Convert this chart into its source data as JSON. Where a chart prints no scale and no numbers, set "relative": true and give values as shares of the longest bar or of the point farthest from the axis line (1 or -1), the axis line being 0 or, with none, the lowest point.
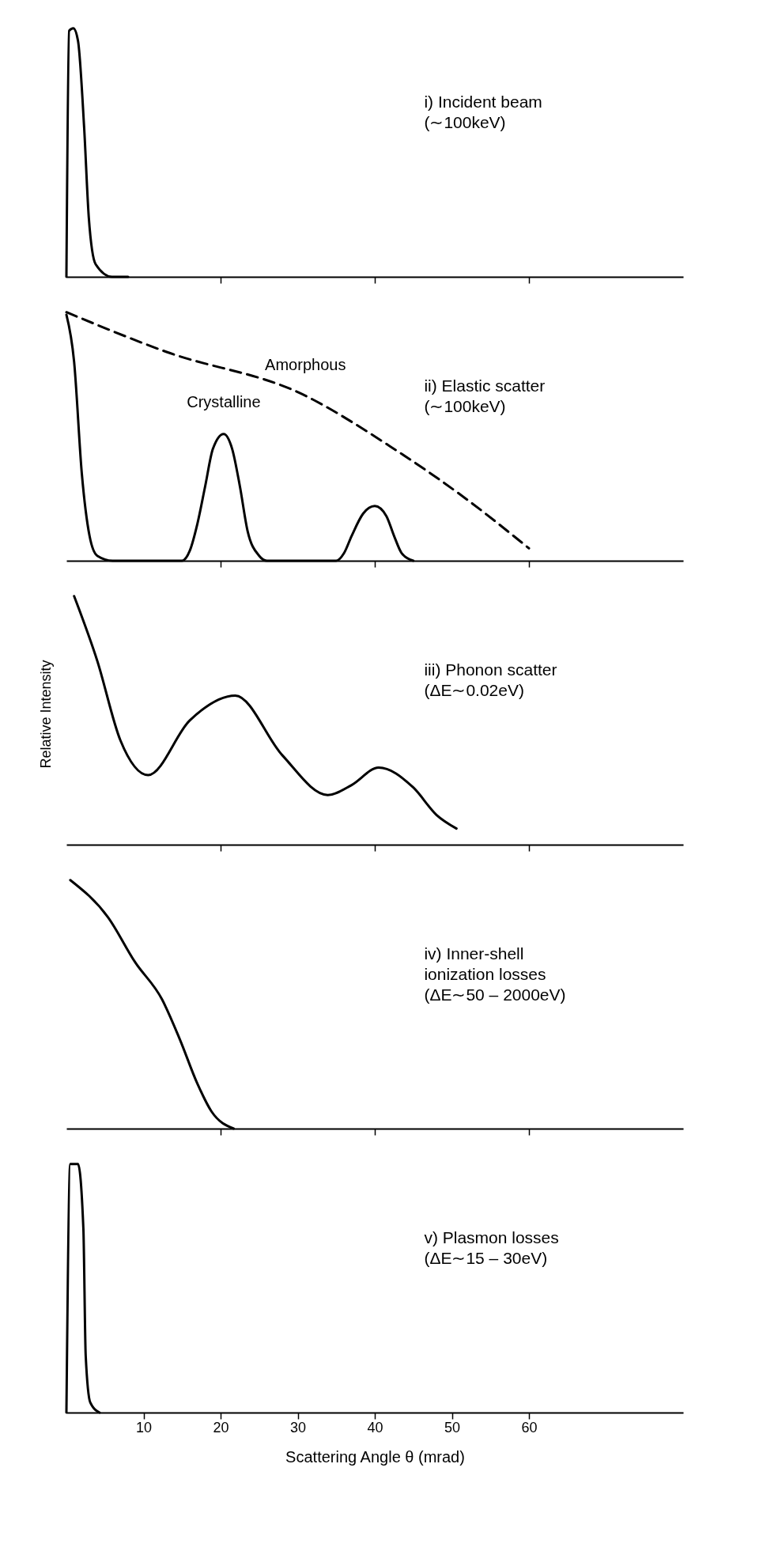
{
  "chart_data": [
    {
      "type": "line",
      "relative": true,
      "title": "i)  Incident beam",
      "subtitle": "(∼100keV)",
      "xlim": [
        0,
        80
      ],
      "xticks": [
        {
          "value": 20,
          "label": null
        },
        {
          "value": 40,
          "label": null
        },
        {
          "value": 60,
          "label": null
        }
      ],
      "tick_labels": false,
      "x": [
        0,
        0.35,
        0.9,
        1.5,
        2.3,
        2.9,
        3.8,
        5.9,
        8
      ],
      "series": [
        {
          "color": "#000000",
          "values": [
            0,
            0.99,
            1.0,
            0.95,
            0.6,
            0.24,
            0.05,
            0,
            0
          ]
        }
      ]
    },
    {
      "type": "line",
      "relative": true,
      "title": "ii)  Elastic scatter",
      "subtitle": "(∼100keV)",
      "xlim": [
        0,
        80
      ],
      "xticks": [
        {
          "value": 20,
          "label": null
        },
        {
          "value": 40,
          "label": null
        },
        {
          "value": 60,
          "label": null
        }
      ],
      "tick_labels": false,
      "annotations": [
        {
          "text": "Crystalline",
          "x": 20.4,
          "y": 0.51
        },
        {
          "text": "Amorphous",
          "x": 31,
          "y": 0.66
        }
      ],
      "series": [
        {
          "color": "#000000",
          "x": [
            0,
            1,
            2,
            3,
            4,
            6,
            15,
            16,
            17,
            18,
            19,
            20.4,
            21.5,
            22.5,
            23.5,
            25,
            26,
            35,
            36,
            37,
            38.5,
            40,
            41.5,
            42.5,
            43.5,
            45
          ],
          "values": [
            0.99,
            0.8,
            0.35,
            0.1,
            0.02,
            0,
            0,
            0.04,
            0.15,
            0.3,
            0.45,
            0.51,
            0.45,
            0.3,
            0.12,
            0.02,
            0,
            0,
            0.03,
            0.1,
            0.19,
            0.22,
            0.18,
            0.1,
            0.03,
            0
          ]
        },
        {
          "color": "#000000",
          "line_style": "dashed",
          "x": [
            0,
            13,
            30.6,
            42,
            51.8,
            60
          ],
          "values": [
            1.0,
            0.84,
            0.67,
            0.46,
            0.25,
            0.05
          ]
        }
      ]
    },
    {
      "type": "line",
      "relative": true,
      "title": "iii)  Phonon scatter",
      "subtitle": "(ΔE∼0.02eV)",
      "ylabel": "Relative Intensity",
      "xlim": [
        0,
        80
      ],
      "xticks": [
        {
          "value": 20,
          "label": null
        },
        {
          "value": 40,
          "label": null
        },
        {
          "value": 60,
          "label": null
        }
      ],
      "tick_labels": false,
      "x": [
        1,
        4,
        7,
        10.6,
        16,
        21.9,
        28,
        33.9,
        37,
        40.5,
        45,
        48,
        50.6
      ],
      "series": [
        {
          "color": "#000000",
          "values": [
            1.0,
            0.74,
            0.42,
            0.28,
            0.5,
            0.6,
            0.36,
            0.2,
            0.24,
            0.31,
            0.23,
            0.12,
            0.065
          ]
        }
      ]
    },
    {
      "type": "line",
      "relative": true,
      "title": "iv)  Inner-shell\nionization losses",
      "subtitle": "(ΔE∼50 – 2000eV)",
      "xlim": [
        0,
        80
      ],
      "xticks": [
        {
          "value": 20,
          "label": null
        },
        {
          "value": 40,
          "label": null
        },
        {
          "value": 60,
          "label": null
        }
      ],
      "tick_labels": false,
      "x": [
        0.5,
        5.4,
        8.9,
        12.4,
        14.7,
        17,
        18.8,
        21.7
      ],
      "series": [
        {
          "color": "#000000",
          "values": [
            1.0,
            0.85,
            0.67,
            0.52,
            0.36,
            0.18,
            0.07,
            0
          ]
        }
      ]
    },
    {
      "type": "line",
      "relative": true,
      "title": "v)  Plasmon losses",
      "subtitle": "(ΔE∼15 – 30eV)",
      "xlabel": "Scattering Angle  θ (mrad)",
      "xlim": [
        0,
        80
      ],
      "xticks": [
        10,
        20,
        30,
        40,
        50,
        60
      ],
      "tick_labels": "x",
      "x": [
        0,
        0.5,
        1.5,
        2.2,
        2.5,
        3.1,
        4.3
      ],
      "series": [
        {
          "color": "#000000",
          "values": [
            0,
            1.0,
            1.0,
            0.74,
            0.23,
            0.04,
            0
          ]
        }
      ]
    }
  ]
}
